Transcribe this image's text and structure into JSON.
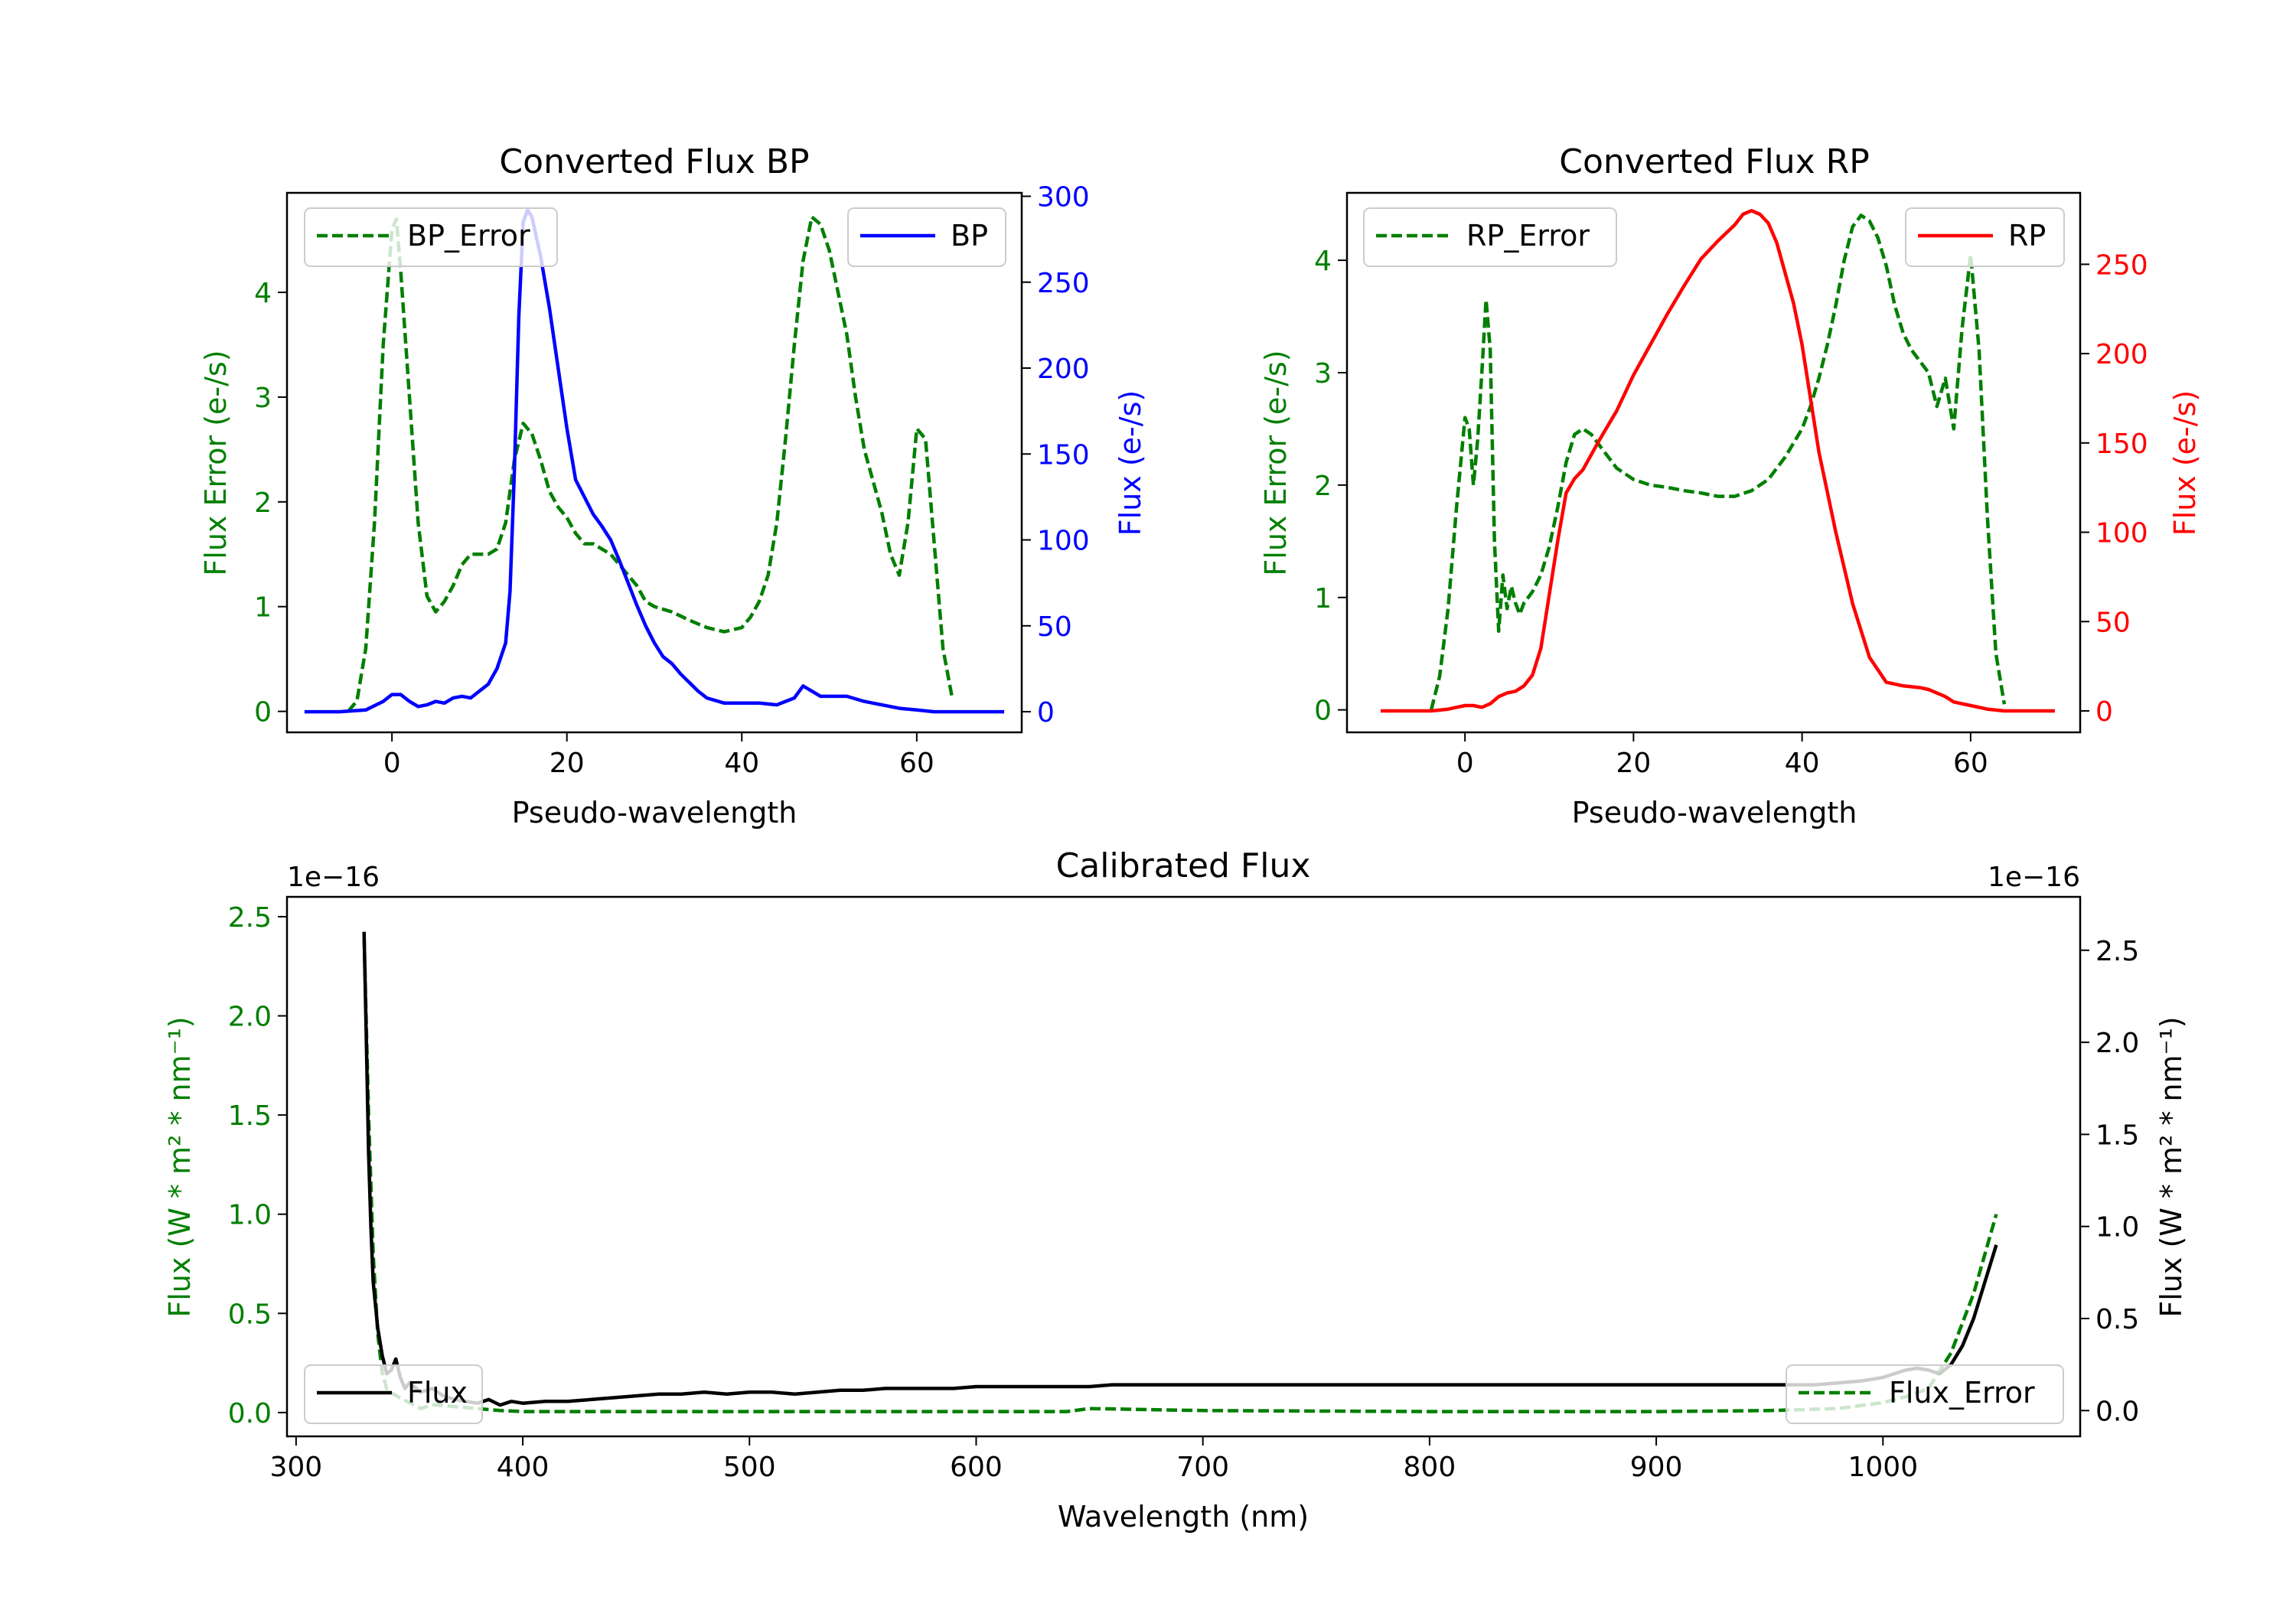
{
  "colors": {
    "green": "#007f00",
    "blue": "#0000ff",
    "red": "#ff0000",
    "black": "#000000"
  },
  "chart_data": [
    {
      "type": "line",
      "title": "Converted Flux BP",
      "xlabel": "Pseudo-wavelength",
      "ylabel_left": "Flux Error (e-/s)",
      "ylabel_right": "Flux (e-/s)",
      "xlim": [
        -12,
        72
      ],
      "ylim_left": [
        -0.2,
        4.95
      ],
      "ylim_right": [
        -12,
        302
      ],
      "xticks": [
        0,
        20,
        40,
        60
      ],
      "yticks_left": [
        0,
        1,
        2,
        3,
        4
      ],
      "yticks_right": [
        0,
        50,
        100,
        150,
        200,
        250,
        300
      ],
      "series": [
        {
          "name": "BP_Error",
          "axis": "left",
          "style": "dashed",
          "color": "#007f00",
          "x": [
            -5,
            -4,
            -3,
            -2,
            -1,
            0,
            0.5,
            1,
            2,
            3,
            4,
            5,
            6,
            7,
            8,
            9,
            10,
            11,
            12,
            13,
            14,
            15,
            16,
            17,
            18,
            19,
            20,
            21,
            22,
            23,
            24,
            25,
            26,
            27,
            28,
            29,
            30,
            32,
            34,
            36,
            38,
            40,
            41,
            42,
            43,
            44,
            45,
            46,
            47,
            48,
            49,
            50,
            51,
            52,
            53,
            54,
            55,
            56,
            57,
            58,
            59,
            60,
            61,
            62,
            63,
            64
          ],
          "values": [
            0,
            0.1,
            0.6,
            1.8,
            3.5,
            4.6,
            4.7,
            4.2,
            3.0,
            1.8,
            1.1,
            0.95,
            1.05,
            1.2,
            1.4,
            1.5,
            1.5,
            1.5,
            1.55,
            1.8,
            2.4,
            2.75,
            2.65,
            2.4,
            2.1,
            1.95,
            1.85,
            1.7,
            1.6,
            1.6,
            1.55,
            1.5,
            1.4,
            1.3,
            1.2,
            1.05,
            1.0,
            0.95,
            0.87,
            0.8,
            0.76,
            0.8,
            0.9,
            1.05,
            1.3,
            1.8,
            2.6,
            3.5,
            4.3,
            4.72,
            4.65,
            4.4,
            4.0,
            3.6,
            3.0,
            2.5,
            2.2,
            1.9,
            1.5,
            1.3,
            1.8,
            2.7,
            2.6,
            1.6,
            0.6,
            0.15
          ]
        },
        {
          "name": "BP",
          "axis": "right",
          "style": "solid",
          "color": "#0000ff",
          "x": [
            -10,
            -6,
            -3,
            -1,
            0,
            1,
            2,
            3,
            4,
            5,
            6,
            7,
            8,
            9,
            10,
            11,
            12,
            13,
            13.5,
            14,
            14.5,
            15,
            15.5,
            16,
            17,
            18,
            19,
            20,
            21,
            22,
            23,
            24,
            25,
            26,
            27,
            28,
            29,
            30,
            31,
            32,
            33,
            34,
            35,
            36,
            38,
            40,
            42,
            44,
            46,
            47,
            48,
            49,
            50,
            52,
            54,
            56,
            58,
            60,
            62,
            64,
            66,
            68,
            70
          ],
          "values": [
            0,
            0,
            1,
            6,
            10,
            10,
            6,
            3,
            4,
            6,
            5,
            8,
            9,
            8,
            12,
            16,
            25,
            40,
            70,
            140,
            230,
            285,
            292,
            288,
            265,
            235,
            200,
            165,
            135,
            125,
            115,
            108,
            100,
            88,
            75,
            62,
            50,
            40,
            32,
            28,
            22,
            17,
            12,
            8,
            5,
            5,
            5,
            4,
            8,
            15,
            12,
            9,
            9,
            9,
            6,
            4,
            2,
            1,
            0,
            0,
            0,
            0,
            0
          ]
        }
      ],
      "legend": [
        {
          "label": "BP_Error",
          "position": "upper-left"
        },
        {
          "label": "BP",
          "position": "upper-right"
        }
      ]
    },
    {
      "type": "line",
      "title": "Converted Flux RP",
      "xlabel": "Pseudo-wavelength",
      "ylabel_left": "Flux Error (e-/s)",
      "ylabel_right": "Flux (e-/s)",
      "xlim": [
        -14,
        73
      ],
      "ylim_left": [
        -0.2,
        4.6
      ],
      "ylim_right": [
        -12,
        290
      ],
      "xticks": [
        0,
        20,
        40,
        60
      ],
      "yticks_left": [
        0,
        1,
        2,
        3,
        4
      ],
      "yticks_right": [
        0,
        50,
        100,
        150,
        200,
        250
      ],
      "series": [
        {
          "name": "RP_Error",
          "axis": "left",
          "style": "dashed",
          "color": "#007f00",
          "x": [
            -4,
            -3,
            -2,
            -1,
            0,
            0.5,
            1,
            1.5,
            2,
            2.5,
            3,
            3.5,
            4,
            4.5,
            5,
            5.5,
            6,
            6.5,
            7,
            8,
            9,
            10,
            11,
            12,
            13,
            14,
            15,
            16,
            17,
            18,
            20,
            22,
            24,
            26,
            28,
            30,
            32,
            34,
            36,
            38,
            40,
            41,
            42,
            43,
            44,
            45,
            46,
            47,
            48,
            49,
            50,
            51,
            52,
            53,
            54,
            55,
            56,
            57,
            58,
            59,
            60,
            61,
            62,
            63,
            64
          ],
          "values": [
            0,
            0.3,
            0.9,
            1.8,
            2.6,
            2.5,
            2.0,
            2.4,
            3.0,
            3.65,
            3.2,
            1.5,
            0.7,
            1.2,
            0.9,
            1.1,
            0.95,
            0.85,
            0.95,
            1.05,
            1.2,
            1.45,
            1.8,
            2.2,
            2.45,
            2.5,
            2.45,
            2.35,
            2.25,
            2.15,
            2.05,
            2.0,
            1.98,
            1.95,
            1.93,
            1.9,
            1.9,
            1.95,
            2.05,
            2.25,
            2.5,
            2.7,
            2.95,
            3.25,
            3.6,
            4.0,
            4.3,
            4.4,
            4.35,
            4.2,
            3.95,
            3.6,
            3.35,
            3.2,
            3.1,
            3.0,
            2.7,
            2.95,
            2.5,
            3.4,
            4.05,
            3.2,
            1.7,
            0.5,
            0.05
          ]
        },
        {
          "name": "RP",
          "axis": "right",
          "style": "solid",
          "color": "#ff0000",
          "x": [
            -10,
            -4,
            -2,
            0,
            1,
            2,
            3,
            4,
            5,
            6,
            7,
            8,
            9,
            10,
            11,
            12,
            13,
            14,
            16,
            18,
            20,
            22,
            24,
            26,
            28,
            30,
            32,
            33,
            34,
            35,
            36,
            37,
            38,
            39,
            40,
            41,
            42,
            44,
            46,
            48,
            50,
            52,
            54,
            55,
            56,
            57,
            58,
            60,
            62,
            64,
            66,
            70
          ],
          "values": [
            0,
            0,
            1,
            3,
            3,
            2,
            4,
            8,
            10,
            11,
            14,
            20,
            35,
            65,
            95,
            122,
            130,
            135,
            152,
            168,
            188,
            205,
            222,
            238,
            253,
            263,
            272,
            278,
            280,
            278,
            273,
            262,
            245,
            228,
            205,
            175,
            145,
            100,
            60,
            30,
            16,
            14,
            13,
            12,
            10,
            8,
            5,
            3,
            1,
            0,
            0,
            0
          ]
        }
      ],
      "legend": [
        {
          "label": "RP_Error",
          "position": "upper-left"
        },
        {
          "label": "RP",
          "position": "upper-right"
        }
      ]
    },
    {
      "type": "line",
      "title": "Calibrated Flux",
      "xlabel": "Wavelength (nm)",
      "ylabel_left": "Flux (W * m² * nm⁻¹)",
      "ylabel_right": "Flux (W * m² * nm⁻¹)",
      "offset_left": "1e−16",
      "offset_right": "1e−16",
      "xlim": [
        296,
        1087
      ],
      "ylim_left": [
        -0.12,
        2.6
      ],
      "ylim_right": [
        -0.14,
        2.79
      ],
      "xticks": [
        300,
        400,
        500,
        600,
        700,
        800,
        900,
        1000
      ],
      "yticks_left": [
        "0.0",
        "0.5",
        "1.0",
        "1.5",
        "2.0",
        "2.5"
      ],
      "yticks_right": [
        "0.0",
        "0.5",
        "1.0",
        "1.5",
        "2.0",
        "2.5"
      ],
      "series": [
        {
          "name": "Flux_Error",
          "axis": "left",
          "style": "dashed",
          "color": "#007f00",
          "x": [
            330,
            332,
            334,
            336,
            338,
            340,
            342,
            345,
            350,
            355,
            360,
            370,
            380,
            390,
            400,
            450,
            500,
            550,
            600,
            640,
            650,
            700,
            800,
            900,
            950,
            980,
            1000,
            1010,
            1020,
            1030,
            1040,
            1050
          ],
          "values": [
            2.4,
            1.5,
            0.8,
            0.4,
            0.2,
            0.12,
            0.1,
            0.08,
            0.05,
            0.02,
            0.04,
            0.03,
            0.02,
            0.01,
            0.005,
            0.005,
            0.005,
            0.005,
            0.005,
            0.005,
            0.02,
            0.01,
            0.005,
            0.005,
            0.01,
            0.02,
            0.05,
            0.08,
            0.12,
            0.3,
            0.6,
            1.0
          ]
        },
        {
          "name": "Flux",
          "axis": "right",
          "style": "solid",
          "color": "#000000",
          "x": [
            330,
            331,
            332,
            333,
            334,
            336,
            338,
            340,
            342,
            344,
            346,
            348,
            350,
            355,
            360,
            365,
            370,
            375,
            380,
            385,
            390,
            395,
            400,
            410,
            420,
            430,
            440,
            450,
            460,
            470,
            480,
            490,
            500,
            510,
            520,
            530,
            540,
            550,
            560,
            570,
            580,
            590,
            600,
            610,
            620,
            630,
            640,
            650,
            660,
            670,
            680,
            690,
            700,
            710,
            720,
            730,
            740,
            750,
            760,
            770,
            780,
            790,
            800,
            810,
            820,
            830,
            840,
            850,
            860,
            870,
            880,
            890,
            900,
            910,
            920,
            930,
            940,
            950,
            960,
            970,
            980,
            990,
            1000,
            1010,
            1015,
            1020,
            1025,
            1030,
            1035,
            1040,
            1045,
            1050
          ],
          "values": [
            2.6,
            2.0,
            1.4,
            1.0,
            0.7,
            0.45,
            0.3,
            0.2,
            0.22,
            0.28,
            0.18,
            0.12,
            0.15,
            0.1,
            0.12,
            0.08,
            0.06,
            0.05,
            0.04,
            0.06,
            0.03,
            0.05,
            0.04,
            0.05,
            0.05,
            0.06,
            0.07,
            0.08,
            0.09,
            0.09,
            0.1,
            0.09,
            0.1,
            0.1,
            0.09,
            0.1,
            0.11,
            0.11,
            0.12,
            0.12,
            0.12,
            0.12,
            0.13,
            0.13,
            0.13,
            0.13,
            0.13,
            0.13,
            0.14,
            0.14,
            0.14,
            0.14,
            0.14,
            0.14,
            0.14,
            0.14,
            0.14,
            0.14,
            0.14,
            0.14,
            0.14,
            0.14,
            0.14,
            0.14,
            0.14,
            0.14,
            0.14,
            0.14,
            0.14,
            0.14,
            0.14,
            0.14,
            0.14,
            0.14,
            0.14,
            0.14,
            0.14,
            0.14,
            0.14,
            0.14,
            0.15,
            0.16,
            0.18,
            0.22,
            0.23,
            0.22,
            0.2,
            0.25,
            0.35,
            0.5,
            0.7,
            0.9
          ]
        }
      ],
      "legend": [
        {
          "label": "Flux",
          "position": "lower-left"
        },
        {
          "label": "Flux_Error",
          "position": "lower-right"
        }
      ]
    }
  ]
}
